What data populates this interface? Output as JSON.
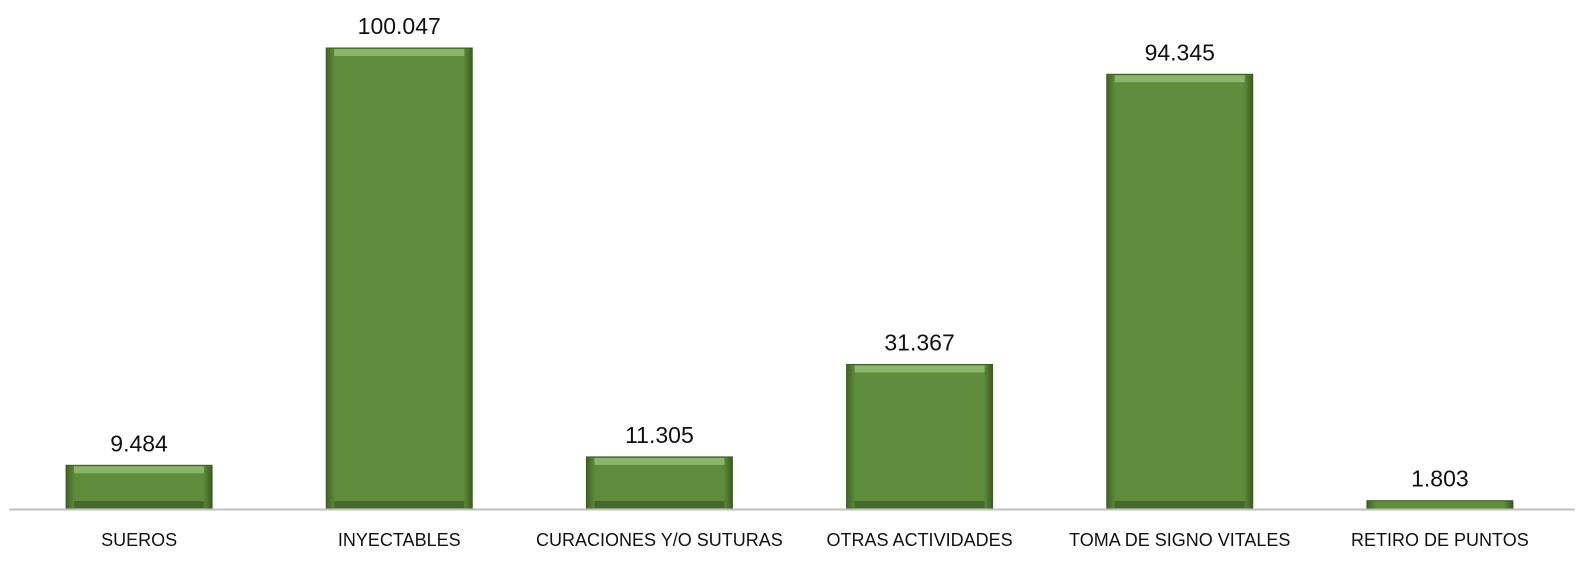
{
  "chart_data": {
    "type": "bar",
    "categories": [
      "SUEROS",
      "INYECTABLES",
      "CURACIONES Y/O SUTURAS",
      "OTRAS ACTIVIDADES",
      "TOMA DE SIGNO VITALES",
      "RETIRO DE PUNTOS"
    ],
    "values": [
      9484,
      100047,
      11305,
      31367,
      94345,
      1803
    ],
    "value_labels": [
      "9.484",
      "100.047",
      "11.305",
      "31.367",
      "94.345",
      "1.803"
    ],
    "color": "#5e8c3a"
  }
}
